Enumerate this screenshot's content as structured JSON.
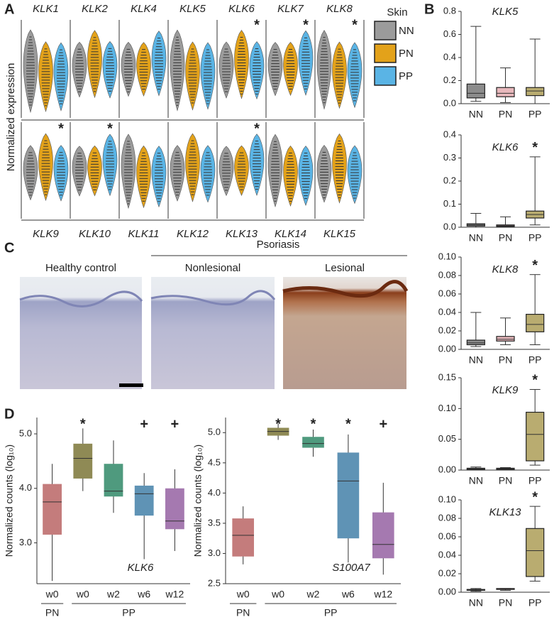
{
  "panel_labels": [
    "A",
    "B",
    "C",
    "D"
  ],
  "panel_c": {
    "group_label": "Psoriasis",
    "images": [
      "Healthy control",
      "Nonlesional",
      "Lesional"
    ]
  },
  "chart_data": [
    {
      "type": "violin",
      "y_label": "Normalized expression",
      "legend_title": "Skin",
      "series": [
        {
          "name": "NN",
          "color": "#9b9b9b"
        },
        {
          "name": "PN",
          "color": "#e3a21a"
        },
        {
          "name": "PP",
          "color": "#5ab4e5"
        }
      ],
      "categories": [
        "KLK1",
        "KLK2",
        "KLK4",
        "KLK5",
        "KLK6",
        "KLK7",
        "KLK8",
        "KLK9",
        "KLK10",
        "KLK11",
        "KLK12",
        "KLK13",
        "KLK14",
        "KLK15"
      ],
      "annotations": [
        null,
        null,
        null,
        null,
        "*",
        "*",
        "*",
        "*",
        "*",
        null,
        null,
        "*",
        null,
        null
      ]
    },
    {
      "type": "box",
      "title": "KLK5",
      "categories": [
        "NN",
        "PN",
        "PP"
      ],
      "colors": [
        "#8c8c8c",
        "#e8b8bc",
        "#b9ac70"
      ],
      "ylim": [
        0,
        0.8
      ],
      "yticks": [
        {
          "value": 0,
          "label": "0.0"
        },
        0.2,
        0.4,
        0.6,
        0.8
      ],
      "boxes": [
        {
          "min": 0.02,
          "q1": 0.05,
          "median": 0.09,
          "q3": 0.17,
          "max": 0.67
        },
        {
          "min": 0.01,
          "q1": 0.06,
          "median": 0.09,
          "q3": 0.14,
          "max": 0.31
        },
        {
          "min": 0.0,
          "q1": 0.07,
          "median": 0.11,
          "q3": 0.14,
          "max": 0.56
        }
      ]
    },
    {
      "type": "box",
      "title": "KLK6",
      "categories": [
        "NN",
        "PN",
        "PP"
      ],
      "colors": [
        "#8c8c8c",
        "#e8b8bc",
        "#b9ac70"
      ],
      "ylim": [
        0,
        0.4
      ],
      "yticks": [
        {
          "value": 0,
          "label": "0.0"
        },
        0.1,
        0.2,
        0.3,
        0.4
      ],
      "boxes": [
        {
          "min": 0.0,
          "q1": 0.005,
          "median": 0.01,
          "q3": 0.015,
          "max": 0.06
        },
        {
          "min": 0.0,
          "q1": 0.003,
          "median": 0.006,
          "q3": 0.01,
          "max": 0.045
        },
        {
          "min": 0.01,
          "q1": 0.04,
          "median": 0.055,
          "q3": 0.07,
          "max": 0.305
        }
      ],
      "annotations": [
        null,
        null,
        "*"
      ]
    },
    {
      "type": "box",
      "title": "KLK8",
      "categories": [
        "NN",
        "PN",
        "PP"
      ],
      "colors": [
        "#8c8c8c",
        "#e8b8bc",
        "#b9ac70"
      ],
      "ylim": [
        0,
        0.1
      ],
      "yticks": [
        {
          "value": 0,
          "label": "0.00"
        },
        0.02,
        0.04,
        0.06,
        0.08,
        {
          "value": 0.1,
          "label": "0.10"
        }
      ],
      "boxes": [
        {
          "min": 0.003,
          "q1": 0.005,
          "median": 0.007,
          "q3": 0.01,
          "max": 0.04
        },
        {
          "min": 0.005,
          "q1": 0.009,
          "median": 0.011,
          "q3": 0.014,
          "max": 0.034
        },
        {
          "min": 0.005,
          "q1": 0.019,
          "median": 0.027,
          "q3": 0.038,
          "max": 0.081
        }
      ],
      "annotations": [
        null,
        null,
        "*"
      ]
    },
    {
      "type": "box",
      "title": "KLK9",
      "categories": [
        "NN",
        "PN",
        "PP"
      ],
      "colors": [
        "#8c8c8c",
        "#e8b8bc",
        "#b9ac70"
      ],
      "ylim": [
        0,
        0.15
      ],
      "yticks": [
        {
          "value": 0,
          "label": "0.00"
        },
        0.05,
        {
          "value": 0.1,
          "label": "0.10"
        },
        0.15
      ],
      "boxes": [
        {
          "min": 0.0,
          "q1": 0.001,
          "median": 0.002,
          "q3": 0.003,
          "max": 0.005
        },
        {
          "min": 0.0,
          "q1": 0.001,
          "median": 0.002,
          "q3": 0.003,
          "max": 0.004
        },
        {
          "min": 0.008,
          "q1": 0.015,
          "median": 0.058,
          "q3": 0.094,
          "max": 0.131
        }
      ],
      "annotations": [
        null,
        null,
        "*"
      ]
    },
    {
      "type": "box",
      "title": "KLK13",
      "categories": [
        "NN",
        "PN",
        "PP"
      ],
      "colors": [
        "#8c8c8c",
        "#e8b8bc",
        "#b9ac70"
      ],
      "ylim": [
        0,
        0.1
      ],
      "yticks": [
        {
          "value": 0,
          "label": "0.00"
        },
        0.02,
        0.04,
        0.06,
        0.08,
        {
          "value": 0.1,
          "label": "0.10"
        }
      ],
      "boxes": [
        {
          "min": 0.001,
          "q1": 0.002,
          "median": 0.002,
          "q3": 0.003,
          "max": 0.004
        },
        {
          "min": 0.002,
          "q1": 0.003,
          "median": 0.003,
          "q3": 0.004,
          "max": 0.004
        },
        {
          "min": 0.012,
          "q1": 0.017,
          "median": 0.045,
          "q3": 0.069,
          "max": 0.093
        }
      ],
      "annotations": [
        null,
        null,
        "*"
      ]
    },
    {
      "type": "box",
      "title": "KLK6",
      "y_label": "Normalized counts (log₁₀)",
      "categories": [
        "w0",
        "w0",
        "w2",
        "w6",
        "w12"
      ],
      "groups": [
        "PN",
        "PP"
      ],
      "colors": [
        "#c47c7c",
        "#8f8a55",
        "#4f9a7e",
        "#5f93b5",
        "#a579b0"
      ],
      "ylim": [
        2.25,
        5.3
      ],
      "yticks": [
        {
          "value": 3,
          "label": "3.0"
        },
        {
          "value": 4,
          "label": "4.0"
        },
        {
          "value": 5,
          "label": "5.0"
        }
      ],
      "boxes": [
        {
          "min": 2.3,
          "q1": 3.15,
          "median": 3.75,
          "q3": 4.08,
          "max": 4.45
        },
        {
          "min": 3.95,
          "q1": 4.18,
          "median": 4.55,
          "q3": 4.82,
          "max": 5.1
        },
        {
          "min": 3.55,
          "q1": 3.85,
          "median": 3.95,
          "q3": 4.45,
          "max": 4.88
        },
        {
          "min": 2.7,
          "q1": 3.5,
          "median": 3.9,
          "q3": 4.05,
          "max": 4.28
        },
        {
          "min": 2.85,
          "q1": 3.25,
          "median": 3.4,
          "q3": 4.0,
          "max": 4.35
        }
      ],
      "annotations": [
        null,
        "*",
        null,
        "+",
        "+"
      ]
    },
    {
      "type": "box",
      "title": "S100A7",
      "y_label": "Normalized counts (log₁₀)",
      "categories": [
        "w0",
        "w0",
        "w2",
        "w6",
        "w12"
      ],
      "groups": [
        "PN",
        "PP"
      ],
      "colors": [
        "#c47c7c",
        "#8f8a55",
        "#4f9a7e",
        "#5f93b5",
        "#a579b0"
      ],
      "ylim": [
        2.5,
        5.25
      ],
      "yticks": [
        2.5,
        {
          "value": 3,
          "label": "3.0"
        },
        3.5,
        {
          "value": 4,
          "label": "4.0"
        },
        4.5,
        {
          "value": 5,
          "label": "5.0"
        }
      ],
      "boxes": [
        {
          "min": 2.82,
          "q1": 2.95,
          "median": 3.3,
          "q3": 3.58,
          "max": 3.78
        },
        {
          "min": 4.88,
          "q1": 4.95,
          "median": 5.02,
          "q3": 5.08,
          "max": 5.15
        },
        {
          "min": 4.6,
          "q1": 4.75,
          "median": 4.82,
          "q3": 4.93,
          "max": 5.05
        },
        {
          "min": 2.85,
          "q1": 3.25,
          "median": 4.2,
          "q3": 4.67,
          "max": 4.97
        },
        {
          "min": 2.65,
          "q1": 2.92,
          "median": 3.15,
          "q3": 3.68,
          "max": 4.17
        }
      ],
      "annotations": [
        null,
        "*",
        "*",
        "*",
        "+"
      ]
    }
  ]
}
